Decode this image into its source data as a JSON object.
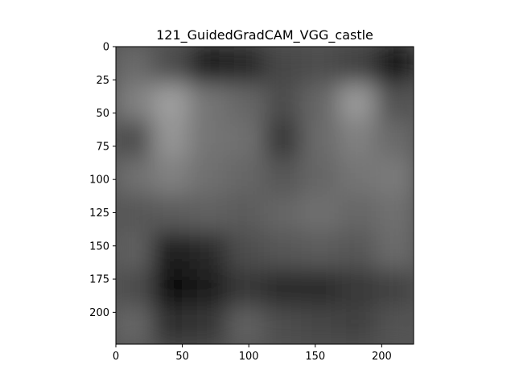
{
  "chart_data": {
    "type": "heatmap",
    "title": "121_GuidedGradCAM_VGG_castle",
    "xlabel": "",
    "ylabel": "",
    "xlim": [
      0,
      224
    ],
    "ylim": [
      224,
      0
    ],
    "xticks": [
      "0",
      "50",
      "100",
      "150",
      "200"
    ],
    "yticks": [
      "0",
      "25",
      "50",
      "75",
      "100",
      "125",
      "150",
      "175",
      "200"
    ],
    "colormap": "grayscale",
    "grid": false,
    "legend": "none",
    "grid_rows": 8,
    "grid_cols": 8,
    "intensity": [
      [
        0.42,
        0.3,
        0.12,
        0.15,
        0.28,
        0.3,
        0.26,
        0.08
      ],
      [
        0.5,
        0.62,
        0.46,
        0.4,
        0.3,
        0.4,
        0.6,
        0.32
      ],
      [
        0.3,
        0.58,
        0.46,
        0.44,
        0.22,
        0.42,
        0.5,
        0.42
      ],
      [
        0.44,
        0.5,
        0.44,
        0.4,
        0.34,
        0.4,
        0.46,
        0.48
      ],
      [
        0.34,
        0.36,
        0.38,
        0.36,
        0.4,
        0.44,
        0.4,
        0.44
      ],
      [
        0.38,
        0.1,
        0.16,
        0.3,
        0.34,
        0.36,
        0.34,
        0.42
      ],
      [
        0.3,
        0.06,
        0.1,
        0.22,
        0.16,
        0.16,
        0.22,
        0.26
      ],
      [
        0.4,
        0.2,
        0.22,
        0.38,
        0.3,
        0.28,
        0.26,
        0.32
      ]
    ]
  }
}
